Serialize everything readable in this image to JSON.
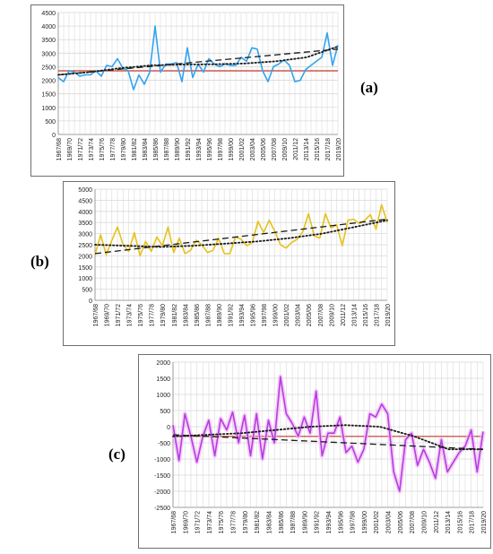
{
  "colors": {
    "a_series": "#33a3f0",
    "b_series": "#e6c21a",
    "c_series": "#b33ee0",
    "c_shadow": "#f4b8f6",
    "mean_line_a": "#c0392b",
    "mean_line_c": "#c0392b",
    "grid": "#d9d9d9",
    "trend": "#1a1a1a"
  },
  "chart_data": [
    {
      "type": "line",
      "panel_label": "(a)",
      "ylim": [
        0,
        4500
      ],
      "yticks": [
        0,
        500,
        1000,
        1500,
        2000,
        2500,
        3000,
        3500,
        4000,
        4500
      ],
      "x_tick_labels": [
        "1967/68",
        "1969/70",
        "1971/72",
        "1973/74",
        "1975/76",
        "1977/78",
        "1979/80",
        "1981/82",
        "1983/84",
        "1985/86",
        "1987/88",
        "1989/90",
        "1991/92",
        "1993/94",
        "1995/96",
        "1997/98",
        "1999/00",
        "2001/02",
        "2003/04",
        "2005/06",
        "2007/08",
        "2009/10",
        "2011/12",
        "2013/14",
        "2015/16",
        "2017/18",
        "2019/20"
      ],
      "values": [
        2100,
        1950,
        2350,
        2300,
        2150,
        2200,
        2200,
        2350,
        2150,
        2550,
        2500,
        2800,
        2450,
        2350,
        1650,
        2200,
        1850,
        2300,
        4000,
        2300,
        2600,
        2600,
        2650,
        1950,
        3200,
        2100,
        2600,
        2300,
        2800,
        2600,
        2500,
        2600,
        2550,
        2550,
        2850,
        2700,
        3200,
        3150,
        2350,
        1950,
        2500,
        2600,
        2750,
        2550,
        1950,
        2000,
        2400,
        2550,
        2700,
        2850,
        3750,
        2550,
        3300
      ],
      "mean": 2350,
      "linear_trend": [
        2200,
        3150
      ],
      "poly_trend": [
        2200,
        2300,
        2450,
        2550,
        2580,
        2590,
        2620,
        2700,
        2850,
        3250
      ]
    },
    {
      "type": "line",
      "panel_label": "(b)",
      "ylim": [
        0,
        5000
      ],
      "yticks": [
        0,
        500,
        1000,
        1500,
        2000,
        2500,
        3000,
        3500,
        4000,
        4500,
        5000
      ],
      "x_tick_labels": [
        "1967/68",
        "1969/70",
        "1971/72",
        "1973/74",
        "1975/76",
        "1977/78",
        "1979/80",
        "1981/82",
        "1983/84",
        "1985/86",
        "1987/88",
        "1989/90",
        "1991/92",
        "1993/94",
        "1995/96",
        "1997/98",
        "1999/00",
        "2001/02",
        "2003/04",
        "2005/06",
        "2007/08",
        "2009/10",
        "2011/12",
        "2013/14",
        "2015/16",
        "2017/18",
        "2019/20"
      ],
      "values": [
        2050,
        2950,
        2050,
        2700,
        3300,
        2500,
        2200,
        3050,
        2000,
        2650,
        2200,
        2850,
        2450,
        3300,
        2150,
        2800,
        2100,
        2250,
        2700,
        2500,
        2150,
        2250,
        2800,
        2100,
        2100,
        2850,
        2750,
        2450,
        2600,
        3550,
        3050,
        3600,
        3100,
        2500,
        2350,
        2600,
        2750,
        3100,
        3900,
        2900,
        2800,
        3900,
        3250,
        3400,
        2450,
        3600,
        3650,
        3450,
        3600,
        3850,
        3200,
        4300,
        3500
      ],
      "linear_trend": [
        2100,
        3650
      ],
      "poly_trend": [
        2500,
        2450,
        2400,
        2450,
        2550,
        2650,
        2800,
        3000,
        3300,
        3600
      ]
    },
    {
      "type": "line",
      "panel_label": "(c)",
      "ylim": [
        -2500,
        2000
      ],
      "yticks": [
        -2500,
        -2000,
        -1500,
        -1000,
        -500,
        0,
        500,
        1000,
        1500,
        2000
      ],
      "x_tick_labels": [
        "1967/68",
        "1969/70",
        "1971/72",
        "1973/74",
        "1975/76",
        "1977/78",
        "1979/80",
        "1981/82",
        "1983/84",
        "1985/86",
        "1987/88",
        "1989/90",
        "1991/92",
        "1993/94",
        "1995/96",
        "1997/98",
        "1999/00",
        "2001/02",
        "2003/04",
        "2005/06",
        "2007/08",
        "2009/10",
        "2011/12",
        "2013/14",
        "2015/16",
        "2017/18",
        "2019/20"
      ],
      "values": [
        50,
        -1050,
        400,
        -300,
        -1100,
        -300,
        200,
        -900,
        250,
        -100,
        450,
        -500,
        350,
        -900,
        400,
        -1000,
        200,
        -500,
        1550,
        400,
        100,
        -300,
        300,
        -200,
        1100,
        -900,
        -200,
        -200,
        300,
        -800,
        -600,
        -1100,
        -700,
        400,
        300,
        700,
        400,
        -1400,
        -2000,
        -400,
        -200,
        -1200,
        -700,
        -1100,
        -1600,
        -400,
        -1400,
        -1100,
        -800,
        -600,
        -100,
        -1400,
        -150
      ],
      "mean": -300,
      "linear_trend": [
        -250,
        -700
      ],
      "poly_trend": [
        -300,
        -250,
        -200,
        -100,
        0,
        50,
        0,
        -300,
        -700,
        -700
      ]
    }
  ]
}
